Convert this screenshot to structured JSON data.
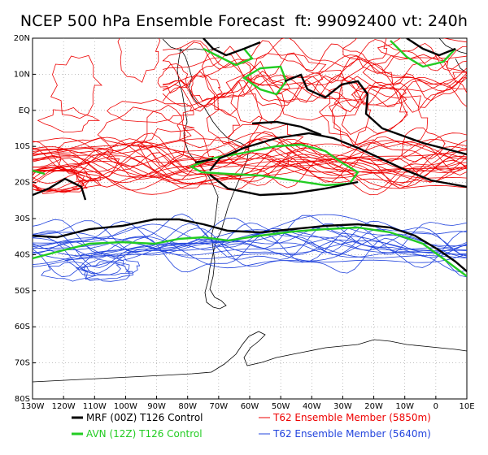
{
  "title": "NCEP 500 hPa Ensemble Forecast  ft: 99092400 vt: 240h",
  "lat_labels": [
    "20N",
    "10N",
    "EQ",
    "10S",
    "20S",
    "30S",
    "40S",
    "50S",
    "60S",
    "70S",
    "80S"
  ],
  "lon_labels": [
    "130W",
    "120W",
    "110W",
    "100W",
    "90W",
    "80W",
    "70W",
    "60W",
    "50W",
    "40W",
    "30W",
    "20W",
    "10W",
    "0",
    "10E"
  ],
  "legend": [
    {
      "label": "MRF (00Z) T126 Control",
      "color": "#000000",
      "width": 3
    },
    {
      "label": "T62 Ensemble Member (5850m)",
      "color": "#ee0000",
      "width": 1
    },
    {
      "label": "AVN (12Z) T126 Control",
      "color": "#22cc22",
      "width": 3
    },
    {
      "label": "T62 Ensemble Member (5640m)",
      "color": "#2244dd",
      "width": 1
    }
  ],
  "colors": {
    "red": "#ee0000",
    "blue": "#2244dd",
    "green": "#22cc22",
    "black": "#000000",
    "grid": "#9a9a9a"
  }
}
